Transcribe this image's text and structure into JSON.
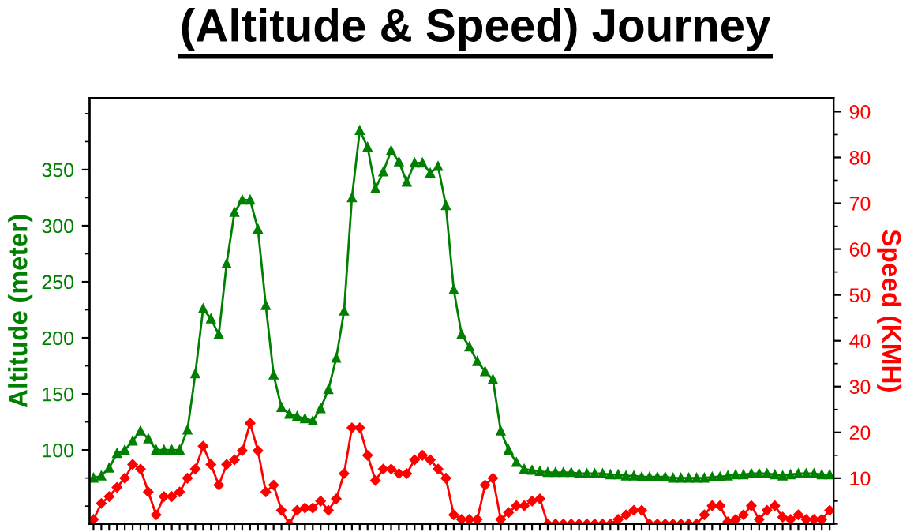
{
  "chart_data": {
    "type": "line",
    "title": "(Altitude & Speed) Journey",
    "ylabel": "Altitude (meter)",
    "y2label": "Speed (KMH)",
    "categories": [
      null,
      null,
      null,
      null,
      null,
      null,
      null,
      null,
      null,
      null,
      null,
      null,
      null,
      null,
      null,
      null,
      null,
      null,
      null,
      null,
      null,
      null,
      null,
      null,
      null,
      null,
      null,
      null,
      null,
      null,
      null,
      null,
      null,
      null,
      null,
      null,
      null,
      null,
      null,
      null,
      null,
      null,
      null,
      null,
      null,
      null,
      null,
      null,
      null,
      null,
      null,
      null,
      null,
      null,
      null,
      null,
      null,
      null,
      null,
      null,
      null,
      null,
      null,
      null,
      null,
      null,
      null,
      null,
      null,
      null,
      null,
      null,
      null,
      null,
      null,
      null,
      null,
      null,
      null,
      null,
      null,
      null,
      null,
      null,
      null,
      null,
      null,
      null,
      null,
      null,
      null,
      null,
      null,
      null,
      null
    ],
    "series": [
      {
        "color": "#008000",
        "marker": "triangle",
        "values": [
          75,
          77,
          84,
          97,
          100,
          108,
          117,
          110,
          100,
          100,
          100,
          100,
          118,
          168,
          226,
          217,
          203,
          266,
          312,
          323,
          323,
          297,
          229,
          167,
          138,
          132,
          130,
          128,
          126,
          137,
          154,
          182,
          224,
          325,
          385,
          370,
          333,
          348,
          367,
          357,
          339,
          356,
          356,
          347,
          353,
          318,
          243,
          203,
          192,
          179,
          170,
          163,
          117,
          100,
          89,
          83,
          82,
          81,
          80,
          80,
          80,
          80,
          79,
          79,
          79,
          79,
          78,
          78,
          77,
          77,
          76,
          76,
          76,
          76,
          75,
          75,
          75,
          75,
          75,
          76,
          76,
          77,
          78,
          78,
          79,
          79,
          79,
          78,
          77,
          78,
          79,
          79,
          79,
          78,
          78
        ]
      },
      {
        "color": "#ff0000",
        "marker": "diamond",
        "axis": "y2",
        "values": [
          1,
          4.5,
          6,
          8,
          10,
          13,
          12,
          7,
          2,
          6,
          6,
          7,
          10,
          12,
          17,
          13,
          8.5,
          13,
          14,
          16,
          22,
          16,
          7,
          8.5,
          3,
          0,
          3,
          3.5,
          3.5,
          5,
          3,
          5.5,
          11,
          21,
          21,
          15,
          9.5,
          12,
          12,
          11,
          11,
          14,
          15,
          14,
          12,
          10,
          2,
          1,
          1,
          1,
          8.5,
          10,
          1,
          2.5,
          4,
          4,
          5,
          5.5,
          0,
          0,
          0,
          0,
          0,
          0,
          0,
          0,
          0,
          1,
          2,
          3,
          3,
          0,
          0,
          0,
          0,
          0,
          0,
          0,
          2,
          4,
          4,
          0.5,
          1,
          2,
          4,
          1,
          3,
          4,
          1.5,
          1,
          2,
          1,
          1,
          1,
          3
        ]
      }
    ],
    "ylim": [
      34,
      414
    ],
    "yticks": [
      100,
      150,
      200,
      250,
      300,
      350
    ],
    "y2lim": [
      0,
      93
    ],
    "y2ticks": [
      10,
      20,
      30,
      40,
      50,
      60,
      70,
      80,
      90
    ],
    "tick_labels": "y",
    "grid": false,
    "legend": false,
    "line_style": "solid"
  }
}
